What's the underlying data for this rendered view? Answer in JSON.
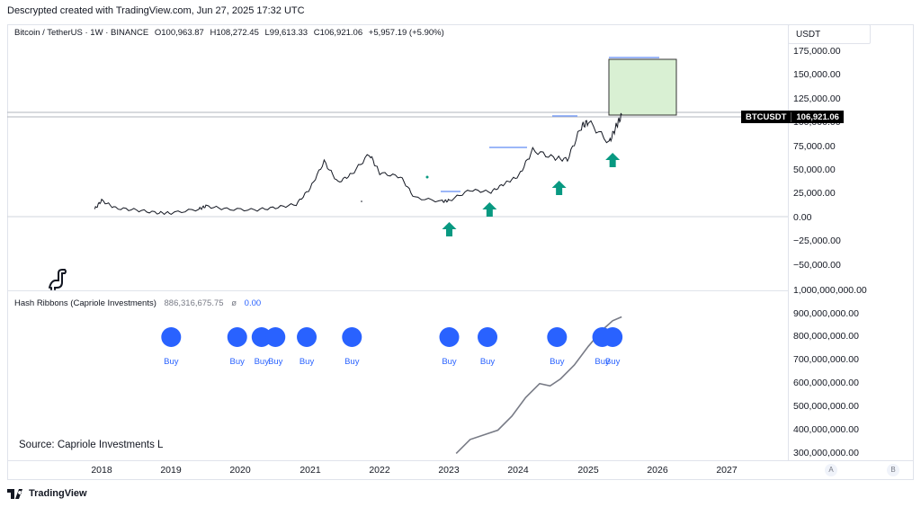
{
  "header": {
    "text": "Descrypted created with TradingView.com, Jun 27, 2025 17:32 UTC"
  },
  "symbol": {
    "name": "Bitcoin / TetherUS · 1W · BINANCE",
    "open": "O100,963.87",
    "high": "H108,272.45",
    "low": "L99,613.33",
    "close": "C106,921.06",
    "change": "+5,957.19 (+5.90%)"
  },
  "unit_selector": "USDT",
  "price_axis": [
    "175,000.00",
    "150,000.00",
    "125,000.00",
    "100,000.00",
    "75,000.00",
    "50,000.00",
    "25,000.00",
    "0.00",
    "−25,000.00",
    "−50,000.00"
  ],
  "price_tag": {
    "ticker": "BTCUSDT",
    "value": "106,921.06"
  },
  "indicator": {
    "name": "Hash Ribbons (Capriole Investments)",
    "value1": "886,316,675.75",
    "value2": "ø",
    "value3": "0.00"
  },
  "indicator_axis": [
    "1,000,000,000.00",
    "900,000,000.00",
    "800,000,000.00",
    "700,000,000.00",
    "600,000,000.00",
    "500,000,000.00",
    "400,000,000.00",
    "300,000,000.00"
  ],
  "buy_label": "Buy",
  "source_note": "Source: Capriole Investments L",
  "time_axis": [
    "2018",
    "2019",
    "2020",
    "2021",
    "2022",
    "2023",
    "2024",
    "2025",
    "2026",
    "2027"
  ],
  "scale_buttons": [
    "A",
    "B"
  ],
  "brand": "TradingView",
  "colors": {
    "buy_dot": "#2962ff",
    "arrow": "#089981",
    "line": "#131722",
    "box_fill": "#d9f0d3"
  },
  "chart_data": {
    "type": "line",
    "title": "Bitcoin / TetherUS · 1W · BINANCE",
    "series": [
      {
        "name": "BTCUSDT",
        "x": [
          2017.9,
          2018.0,
          2018.2,
          2018.5,
          2018.8,
          2019.0,
          2019.4,
          2019.5,
          2019.8,
          2020.2,
          2020.5,
          2020.8,
          2021.0,
          2021.2,
          2021.4,
          2021.6,
          2021.85,
          2022.0,
          2022.3,
          2022.5,
          2022.9,
          2023.0,
          2023.3,
          2023.6,
          2023.8,
          2024.0,
          2024.2,
          2024.5,
          2024.7,
          2024.9,
          2025.0,
          2025.3,
          2025.4,
          2025.48
        ],
        "y": [
          8000,
          17000,
          9000,
          7000,
          4000,
          3800,
          8000,
          11000,
          8000,
          7000,
          9500,
          13000,
          30000,
          58000,
          36000,
          45000,
          66000,
          46000,
          42000,
          20000,
          16000,
          17000,
          28000,
          26000,
          35000,
          43000,
          70000,
          62000,
          60000,
          95000,
          100000,
          78000,
          95000,
          106921
        ]
      }
    ],
    "ylim": [
      -60000,
      180000
    ],
    "annotations": [
      "Buy arrows at 2023.0, 2023.6, 2024.6, 2025.35"
    ],
    "indicator_series": {
      "name": "Hash Ribbons (Capriole Investments)",
      "x": [
        2023.1,
        2023.3,
        2023.5,
        2023.7,
        2023.9,
        2024.1,
        2024.3,
        2024.45,
        2024.6,
        2024.8,
        2025.0,
        2025.2,
        2025.35,
        2025.48
      ],
      "y": [
        300000000,
        360000000,
        380000000,
        400000000,
        460000000,
        540000000,
        600000000,
        590000000,
        620000000,
        680000000,
        760000000,
        830000000,
        870000000,
        886316675
      ]
    },
    "buy_signals": [
      2019.0,
      2019.95,
      2020.3,
      2020.5,
      2020.95,
      2021.6,
      2023.0,
      2023.55,
      2024.55,
      2025.2,
      2025.35
    ]
  }
}
